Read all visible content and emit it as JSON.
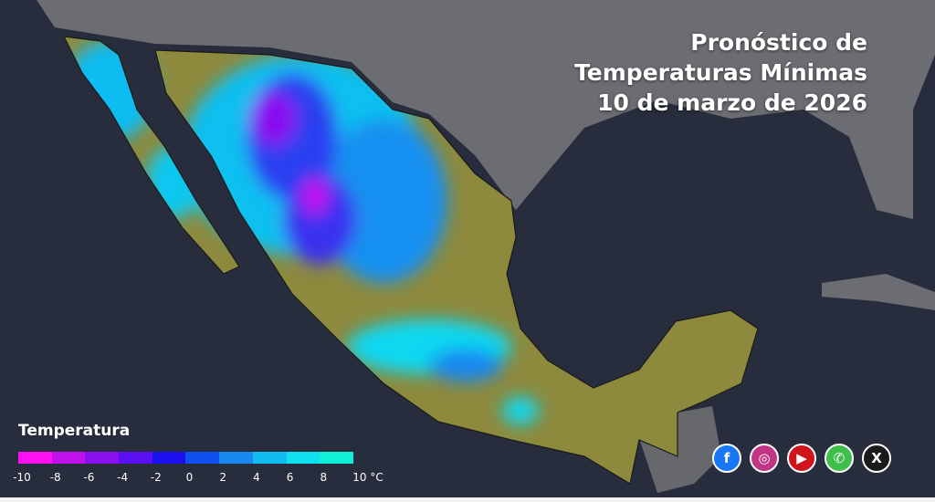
{
  "title": {
    "line1": "Pronóstico de",
    "line2": "Temperaturas Mínimas",
    "line3": "10 de marzo de 2026"
  },
  "legend": {
    "title": "Temperatura",
    "colors": [
      "#ff10f0",
      "#c010ee",
      "#8a10f0",
      "#5a10f0",
      "#1a10ee",
      "#1050f0",
      "#1888f0",
      "#10bcf0",
      "#10e0f0",
      "#10f0d8"
    ],
    "ticks": [
      "-10",
      "-8",
      "-6",
      "-4",
      "-2",
      "0",
      "2",
      "4",
      "6",
      "8",
      "10 °C"
    ]
  },
  "social": [
    {
      "icon": "facebook-icon",
      "glyph": "f",
      "color": "#1877f2"
    },
    {
      "icon": "instagram-icon",
      "glyph": "◎",
      "color": "#c13584"
    },
    {
      "icon": "youtube-icon",
      "glyph": "▶",
      "color": "#d0141c"
    },
    {
      "icon": "whatsapp-icon",
      "glyph": "✆",
      "color": "#3fbf4a"
    },
    {
      "icon": "x-icon",
      "glyph": "X",
      "color": "#1a1a1a"
    }
  ]
}
